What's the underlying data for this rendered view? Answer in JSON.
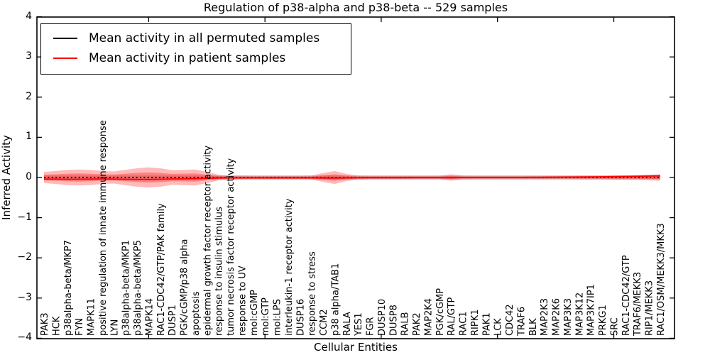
{
  "title": "Regulation of p38-alpha and p38-beta -- 529 samples",
  "legend": {
    "items": [
      {
        "label": "Mean activity in all permuted samples",
        "color": "#000000"
      },
      {
        "label": "Mean activity in patient samples",
        "color": "#ff0000"
      }
    ]
  },
  "chart_data": {
    "type": "line",
    "title": "Regulation of p38-alpha and p38-beta -- 529 samples",
    "xlabel": "Cellular Entities",
    "ylabel": "Inferred Activity",
    "ylim": [
      -4,
      4
    ],
    "grid": false,
    "legend_position": "upper-left",
    "yticks": [
      {
        "v": 4,
        "label": "4"
      },
      {
        "v": 3,
        "label": "3"
      },
      {
        "v": 2,
        "label": "2"
      },
      {
        "v": 1,
        "label": "1"
      },
      {
        "v": 0,
        "label": "0"
      },
      {
        "v": -1,
        "label": "−1"
      },
      {
        "v": -2,
        "label": "−2"
      },
      {
        "v": -3,
        "label": "−3"
      },
      {
        "v": -4,
        "label": "−4"
      }
    ],
    "categories": [
      "PAK3",
      "HCK",
      "p38alpha-beta/MKP7",
      "FYN",
      "MAPK11",
      "positive regulation of innate immune response",
      "LYN",
      "p38alpha-beta/MKP1",
      "p38alpha-beta/MKP5",
      "MAPK14",
      "RAC1-CDC42/GTP/PAK family",
      "DUSP1",
      "PGK/cGMP/p38 alpha",
      "apoptosis",
      "epidermal growth factor receptor activity",
      "response to insulin stimulus",
      "tumor necrosis factor receptor activity",
      "response to UV",
      "mol:cGMP",
      "mol:GTP",
      "mol:LPS",
      "interleukin-1 receptor activity",
      "DUSP16",
      "response to stress",
      "CCM2",
      "p38 alpha/TAB1",
      "RALA",
      "YES1",
      "FGR",
      "DUSP10",
      "DUSP8",
      "RALB",
      "PAK2",
      "MAP2K4",
      "PGK/cGMP",
      "RAL/GTP",
      "RAC1",
      "RIPK1",
      "PAK1",
      "LCK",
      "CDC42",
      "TRAF6",
      "BLK",
      "MAP2K3",
      "MAP2K6",
      "MAP3K3",
      "MAP3K12",
      "MAP3K7IP1",
      "PRKG1",
      "SRC",
      "RAC1-CDC42/GTP",
      "TRAF6/MEKK3",
      "RIP1/MEKK3",
      "RAC1/OSM/MEKK3/MKK3"
    ],
    "series": [
      {
        "name": "Mean activity in all permuted samples",
        "color": "#000000",
        "style": "dotted",
        "values": [
          0,
          0,
          0,
          0,
          0,
          0,
          0,
          0,
          0,
          0,
          0,
          0,
          0,
          0,
          0,
          0,
          0,
          0,
          0,
          0,
          0,
          0,
          0,
          0,
          0,
          0,
          0,
          0,
          0,
          0,
          0,
          0,
          0,
          0,
          0,
          0,
          0,
          0,
          0,
          0,
          0,
          0,
          0,
          0,
          0,
          0,
          0,
          0,
          0,
          0,
          0,
          0,
          0,
          0
        ]
      },
      {
        "name": "Mean activity in patient samples",
        "color": "#ff0000",
        "style": "solid",
        "values": [
          -0.04,
          -0.04,
          -0.045,
          -0.045,
          -0.04,
          -0.035,
          -0.04,
          -0.045,
          -0.05,
          -0.05,
          -0.045,
          -0.035,
          -0.035,
          -0.03,
          -0.02,
          -0.012,
          -0.01,
          -0.01,
          -0.01,
          -0.01,
          -0.01,
          -0.01,
          -0.01,
          -0.01,
          -0.012,
          -0.015,
          -0.01,
          -0.008,
          -0.006,
          -0.005,
          -0.005,
          -0.005,
          -0.004,
          -0.004,
          -0.003,
          -0.003,
          -0.002,
          -0.002,
          -0.001,
          0,
          0,
          0.002,
          0.004,
          0.006,
          0.008,
          0.01,
          0.012,
          0.015,
          0.018,
          0.022,
          0.026,
          0.03,
          0.035,
          0.04
        ]
      }
    ],
    "bands": [
      {
        "name": "permuted-samples-spread",
        "color": "#999999",
        "opacity": 0.45,
        "half_widths": [
          0.05,
          0.05,
          0.05,
          0.05,
          0.05,
          0.05,
          0.05,
          0.05,
          0.05,
          0.05,
          0.05,
          0.05,
          0.05,
          0.05,
          0.05,
          0.05,
          0.05,
          0.05,
          0.05,
          0.05,
          0.05,
          0.05,
          0.05,
          0.05,
          0.05,
          0.05,
          0.05,
          0.05,
          0.05,
          0.05,
          0.05,
          0.05,
          0.05,
          0.05,
          0.05,
          0.05,
          0.05,
          0.05,
          0.05,
          0.05,
          0.05,
          0.05,
          0.05,
          0.05,
          0.05,
          0.05,
          0.05,
          0.05,
          0.05,
          0.05,
          0.05,
          0.05,
          0.05,
          0.05
        ]
      },
      {
        "name": "patient-samples-spread-outer",
        "color": "#ff0000",
        "opacity": 0.27,
        "half_widths": [
          0.14,
          0.16,
          0.19,
          0.2,
          0.19,
          0.16,
          0.15,
          0.19,
          0.23,
          0.25,
          0.23,
          0.18,
          0.19,
          0.2,
          0.14,
          0.07,
          0.05,
          0.05,
          0.045,
          0.045,
          0.045,
          0.045,
          0.045,
          0.05,
          0.11,
          0.16,
          0.09,
          0.05,
          0.045,
          0.045,
          0.045,
          0.045,
          0.045,
          0.045,
          0.045,
          0.08,
          0.05,
          0.045,
          0.045,
          0.045,
          0.045,
          0.045,
          0.045,
          0.045,
          0.045,
          0.045,
          0.05,
          0.05,
          0.05,
          0.055,
          0.055,
          0.06,
          0.07,
          0.08
        ]
      },
      {
        "name": "patient-samples-spread-inner",
        "color": "#ff0000",
        "opacity": 0.3,
        "half_widths": [
          0.07,
          0.08,
          0.095,
          0.1,
          0.095,
          0.08,
          0.075,
          0.095,
          0.115,
          0.125,
          0.115,
          0.09,
          0.095,
          0.1,
          0.07,
          0.035,
          0.025,
          0.025,
          0.022,
          0.022,
          0.022,
          0.022,
          0.022,
          0.025,
          0.055,
          0.08,
          0.045,
          0.025,
          0.022,
          0.022,
          0.022,
          0.022,
          0.022,
          0.022,
          0.022,
          0.04,
          0.025,
          0.022,
          0.022,
          0.022,
          0.022,
          0.022,
          0.022,
          0.022,
          0.022,
          0.022,
          0.025,
          0.025,
          0.025,
          0.028,
          0.028,
          0.03,
          0.035,
          0.04
        ]
      }
    ]
  }
}
